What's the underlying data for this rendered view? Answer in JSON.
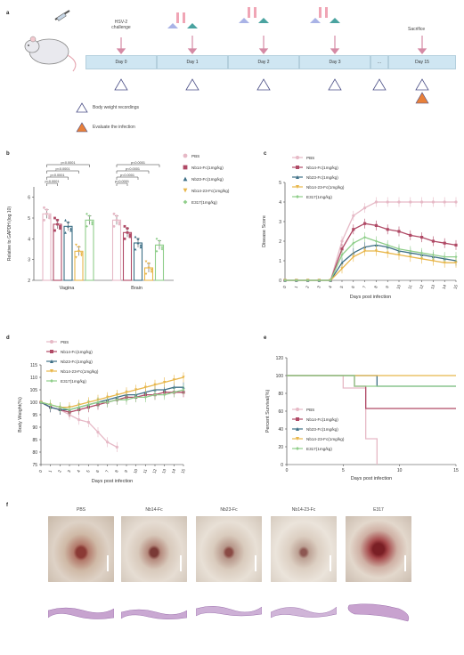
{
  "panels": {
    "a": "a",
    "b": "b",
    "c": "c",
    "d": "d",
    "e": "e",
    "f": "f"
  },
  "timeline": {
    "challenge_label": "HSV-2\nchallenge",
    "sacrifice_label": "Sacrifice",
    "days": [
      "Day 0",
      "Day 1",
      "Day 2",
      "Day 3",
      "...",
      "Day 15"
    ],
    "legend": [
      {
        "label": "Body weight recordings",
        "marker": "open-triangle"
      },
      {
        "label": "Evaluate the infection",
        "marker": "filled-triangle",
        "color": "#e8803a"
      }
    ]
  },
  "legend_groups": [
    "PBS",
    "Nb14-Fc(1mg/kg)",
    "Nb23-Fc(1mg/kg)",
    "Nb14-23-Fc(1mg/kg)",
    "E317(1mg/kg)"
  ],
  "legend_groups_c": [
    "PBS",
    "Nb14-Fc(1mg/kg)",
    "Nb23-Fc(1mg/kg)",
    "Nb14-23-Fc(1mg/kg)",
    "E317(1mg/kg)"
  ],
  "colors": {
    "pbs": "#e6b9c6",
    "nb14": "#b04a66",
    "nb23": "#3d6f86",
    "nb1423": "#e8b64a",
    "e317": "#8fce8a"
  },
  "chart_data": [
    {
      "type": "bar",
      "panel": "b",
      "categories": [
        "Vagina",
        "Brain"
      ],
      "series": [
        {
          "name": "PBS",
          "values": [
            5.2,
            4.9
          ]
        },
        {
          "name": "Nb14-Fc(1mg/kg)",
          "values": [
            4.7,
            4.3
          ]
        },
        {
          "name": "Nb23-Fc(1mg/kg)",
          "values": [
            4.6,
            3.8
          ]
        },
        {
          "name": "Nb14-23-Fc(1mg/kg)",
          "values": [
            3.4,
            2.6
          ]
        },
        {
          "name": "E317(1mg/kg)",
          "values": [
            4.9,
            3.7
          ]
        }
      ],
      "ylabel": "Relative to GAPDH (log 10)",
      "ylim": [
        2,
        6.5
      ],
      "yticks": [
        2,
        3,
        4,
        5,
        6
      ],
      "sig_labels": [
        "p<0.0001",
        "p<0.0001",
        "p<0.0001",
        "p<0.0001",
        "p<0.0001",
        "p<0.0001",
        "p<0.0001",
        "p<0.0001"
      ]
    },
    {
      "type": "line",
      "panel": "c",
      "x": [
        0,
        1,
        2,
        3,
        4,
        5,
        6,
        7,
        8,
        9,
        10,
        11,
        12,
        13,
        14,
        15
      ],
      "xlabel": "Days post infection",
      "ylabel": "Disease Score",
      "ylim": [
        0,
        5
      ],
      "yticks": [
        0,
        1,
        2,
        3,
        4,
        5
      ],
      "series": [
        {
          "name": "PBS",
          "values": [
            0,
            0,
            0,
            0,
            0,
            2.0,
            3.3,
            3.7,
            4,
            4,
            4,
            4,
            4,
            4,
            4,
            4
          ]
        },
        {
          "name": "Nb14-Fc(1mg/kg)",
          "values": [
            0,
            0,
            0,
            0,
            0,
            1.6,
            2.6,
            2.9,
            2.8,
            2.6,
            2.5,
            2.3,
            2.2,
            2.0,
            1.9,
            1.8
          ]
        },
        {
          "name": "Nb23-Fc(1mg/kg)",
          "values": [
            0,
            0,
            0,
            0,
            0,
            0.9,
            1.4,
            1.7,
            1.8,
            1.7,
            1.5,
            1.4,
            1.3,
            1.2,
            1.1,
            1.0
          ]
        },
        {
          "name": "Nb14-23-Fc(1mg/kg)",
          "values": [
            0,
            0,
            0,
            0,
            0,
            0.6,
            1.2,
            1.5,
            1.5,
            1.4,
            1.3,
            1.2,
            1.1,
            1.0,
            0.9,
            0.9
          ]
        },
        {
          "name": "E317(1mg/kg)",
          "values": [
            0,
            0,
            0,
            0,
            0,
            1.3,
            1.9,
            2.2,
            2.0,
            1.8,
            1.6,
            1.5,
            1.4,
            1.3,
            1.2,
            1.2
          ]
        }
      ]
    },
    {
      "type": "line",
      "panel": "d",
      "x": [
        0,
        1,
        2,
        3,
        4,
        5,
        6,
        7,
        8,
        9,
        10,
        11,
        12,
        13,
        14,
        15
      ],
      "xlabel": "Days post infection",
      "ylabel": "Body Weight(%)",
      "ylim": [
        75,
        115
      ],
      "yticks": [
        75,
        80,
        85,
        90,
        95,
        100,
        105,
        110,
        115
      ],
      "series": [
        {
          "name": "PBS",
          "values": [
            100,
            98,
            97,
            95,
            93,
            92,
            88,
            84,
            82,
            null,
            null,
            null,
            null,
            null,
            null,
            null
          ]
        },
        {
          "name": "Nb14-Fc(1mg/kg)",
          "values": [
            100,
            98,
            97,
            96,
            97,
            98,
            99,
            100,
            101,
            102,
            102,
            103,
            103,
            104,
            104,
            104
          ]
        },
        {
          "name": "Nb23-Fc(1mg/kg)",
          "values": [
            100,
            98,
            97,
            97,
            98,
            99,
            100,
            101,
            102,
            103,
            103,
            104,
            105,
            105,
            106,
            106
          ]
        },
        {
          "name": "Nb14-23-Fc(1mg/kg)",
          "values": [
            100,
            99,
            98,
            98,
            99,
            100,
            101,
            102,
            103,
            104,
            105,
            106,
            107,
            108,
            109,
            110
          ]
        },
        {
          "name": "E317(1mg/kg)",
          "values": [
            100,
            99,
            98,
            97,
            98,
            99,
            100,
            100,
            101,
            101,
            102,
            102,
            103,
            103,
            104,
            105
          ]
        }
      ]
    },
    {
      "type": "line",
      "panel": "e",
      "x": [
        0,
        15
      ],
      "xlabel": "Days post infection",
      "ylabel": "Percent Survival(%)",
      "ylim": [
        0,
        120
      ],
      "yticks": [
        0,
        20,
        40,
        60,
        80,
        100,
        120
      ],
      "series": [
        {
          "name": "PBS",
          "steps": [
            [
              0,
              100
            ],
            [
              5,
              100
            ],
            [
              5,
              86
            ],
            [
              7,
              86
            ],
            [
              7,
              29
            ],
            [
              8,
              29
            ],
            [
              8,
              0
            ]
          ]
        },
        {
          "name": "Nb14-Fc(1mg/kg)",
          "steps": [
            [
              0,
              100
            ],
            [
              6,
              100
            ],
            [
              6,
              88
            ],
            [
              7,
              88
            ],
            [
              7,
              63
            ],
            [
              15,
              63
            ]
          ]
        },
        {
          "name": "Nb23-Fc(1mg/kg)",
          "steps": [
            [
              0,
              100
            ],
            [
              8,
              100
            ],
            [
              8,
              88
            ],
            [
              15,
              88
            ]
          ]
        },
        {
          "name": "Nb14-23-Fc(1mg/kg)",
          "steps": [
            [
              0,
              100
            ],
            [
              15,
              100
            ]
          ]
        },
        {
          "name": "E317(1mg/kg)",
          "steps": [
            [
              0,
              100
            ],
            [
              6,
              100
            ],
            [
              6,
              88
            ],
            [
              15,
              88
            ]
          ]
        }
      ]
    }
  ],
  "photos": [
    "PBS",
    "Nb14-Fc",
    "Nb23-Fc",
    "Nb14-23-Fc",
    "E317"
  ]
}
